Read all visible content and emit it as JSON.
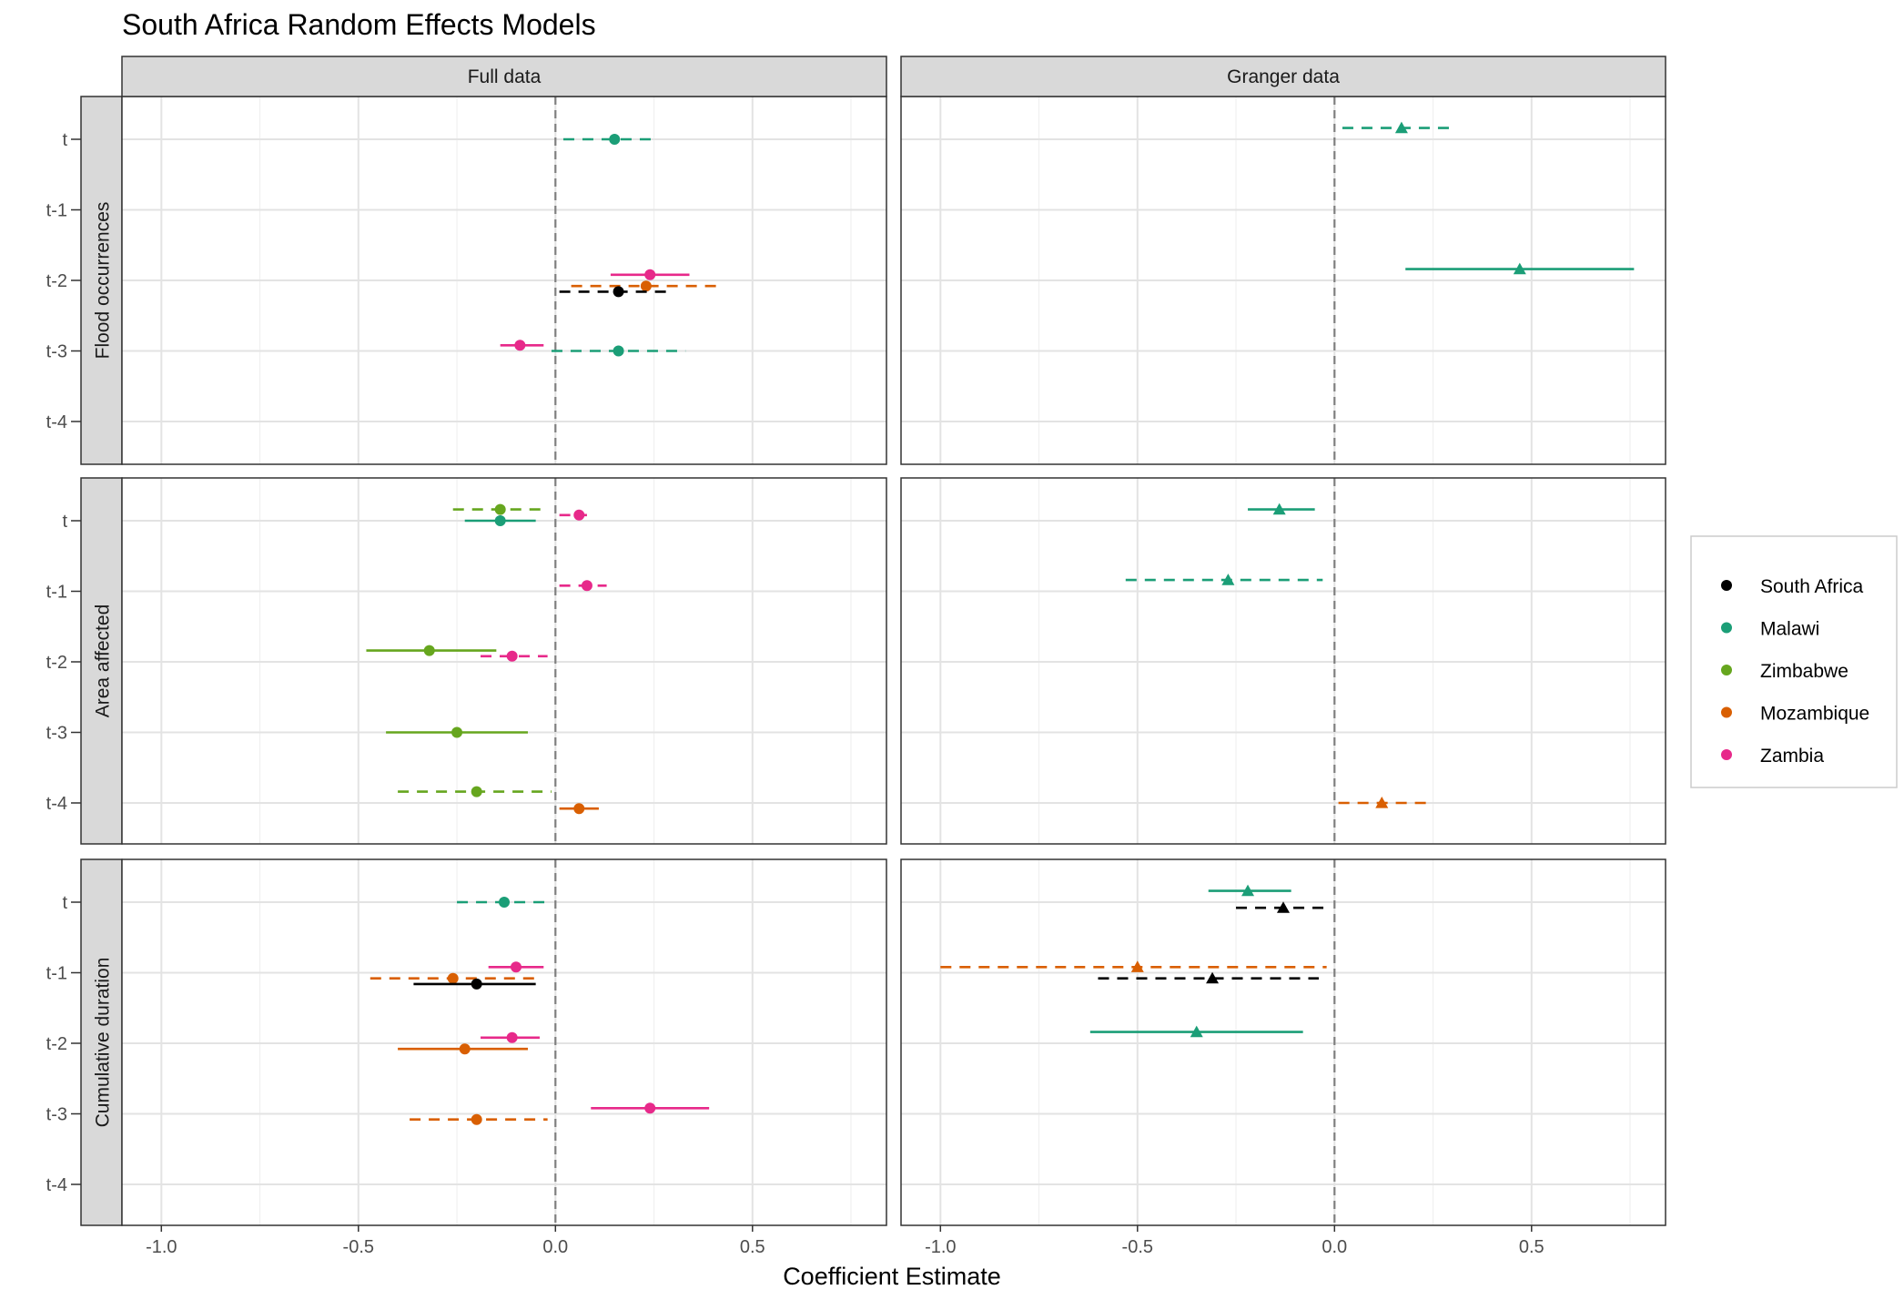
{
  "chart_data": {
    "type": "scatter",
    "subtype": "coefficient-plot",
    "title": "South Africa Random Effects Models",
    "xlabel": "Coefficient Estimate",
    "ylabel": "",
    "xlim": [
      -1.1,
      0.84
    ],
    "x_ticks": [
      -1.0,
      -0.5,
      0.0,
      0.5
    ],
    "x_tick_labels": [
      "-1.0",
      "-0.5",
      "0.0",
      "0.5"
    ],
    "y_categories": [
      "t",
      "t-1",
      "t-2",
      "t-3",
      "t-4"
    ],
    "reference_line_x": 0,
    "grid": true,
    "column_facets": [
      "Full data",
      "Granger data"
    ],
    "row_facets": [
      "Flood occurrences",
      "Area affected",
      "Cumulative duration"
    ],
    "legend": {
      "position": "right",
      "entries": [
        {
          "name": "South Africa",
          "color": "#000000"
        },
        {
          "name": "Malawi",
          "color": "#1b9e77"
        },
        {
          "name": "Zimbabwe",
          "color": "#66a61e"
        },
        {
          "name": "Mozambique",
          "color": "#d95f02"
        },
        {
          "name": "Zambia",
          "color": "#e7298a"
        }
      ]
    },
    "points": [
      {
        "col": "Full data",
        "row": "Flood occurrences",
        "lag": "t",
        "series": "Malawi",
        "x": 0.15,
        "lo": 0.02,
        "hi": 0.26,
        "offset": 0,
        "linestyle": "dashed",
        "marker": "circle"
      },
      {
        "col": "Full data",
        "row": "Flood occurrences",
        "lag": "t-2",
        "series": "Zambia",
        "x": 0.24,
        "lo": 0.14,
        "hi": 0.34,
        "offset": -0.08,
        "linestyle": "solid",
        "marker": "circle"
      },
      {
        "col": "Full data",
        "row": "Flood occurrences",
        "lag": "t-2",
        "series": "Mozambique",
        "x": 0.23,
        "lo": 0.04,
        "hi": 0.41,
        "offset": 0.08,
        "linestyle": "dashed",
        "marker": "circle"
      },
      {
        "col": "Full data",
        "row": "Flood occurrences",
        "lag": "t-2",
        "series": "South Africa",
        "x": 0.16,
        "lo": 0.01,
        "hi": 0.3,
        "offset": 0.16,
        "linestyle": "dashed",
        "marker": "circle"
      },
      {
        "col": "Full data",
        "row": "Flood occurrences",
        "lag": "t-3",
        "series": "Zambia",
        "x": -0.09,
        "lo": -0.14,
        "hi": -0.03,
        "offset": -0.08,
        "linestyle": "solid",
        "marker": "circle"
      },
      {
        "col": "Full data",
        "row": "Flood occurrences",
        "lag": "t-3",
        "series": "Malawi",
        "x": 0.16,
        "lo": -0.01,
        "hi": 0.33,
        "offset": 0,
        "linestyle": "dashed",
        "marker": "circle"
      },
      {
        "col": "Full data",
        "row": "Area affected",
        "lag": "t",
        "series": "Zimbabwe",
        "x": -0.14,
        "lo": -0.26,
        "hi": -0.02,
        "offset": -0.16,
        "linestyle": "dashed",
        "marker": "circle"
      },
      {
        "col": "Full data",
        "row": "Area affected",
        "lag": "t",
        "series": "Zambia",
        "x": 0.06,
        "lo": 0.01,
        "hi": 0.08,
        "offset": -0.08,
        "linestyle": "dashed",
        "marker": "circle"
      },
      {
        "col": "Full data",
        "row": "Area affected",
        "lag": "t",
        "series": "Malawi",
        "x": -0.14,
        "lo": -0.23,
        "hi": -0.05,
        "offset": 0,
        "linestyle": "solid",
        "marker": "circle"
      },
      {
        "col": "Full data",
        "row": "Area affected",
        "lag": "t-1",
        "series": "Zambia",
        "x": 0.08,
        "lo": 0.01,
        "hi": 0.13,
        "offset": -0.08,
        "linestyle": "dashed",
        "marker": "circle"
      },
      {
        "col": "Full data",
        "row": "Area affected",
        "lag": "t-2",
        "series": "Zimbabwe",
        "x": -0.32,
        "lo": -0.48,
        "hi": -0.15,
        "offset": -0.16,
        "linestyle": "solid",
        "marker": "circle"
      },
      {
        "col": "Full data",
        "row": "Area affected",
        "lag": "t-2",
        "series": "Zambia",
        "x": -0.11,
        "lo": -0.19,
        "hi": -0.02,
        "offset": -0.08,
        "linestyle": "dashed",
        "marker": "circle"
      },
      {
        "col": "Full data",
        "row": "Area affected",
        "lag": "t-3",
        "series": "Zimbabwe",
        "x": -0.25,
        "lo": -0.43,
        "hi": -0.07,
        "offset": 0,
        "linestyle": "solid",
        "marker": "circle"
      },
      {
        "col": "Full data",
        "row": "Area affected",
        "lag": "t-4",
        "series": "Zimbabwe",
        "x": -0.2,
        "lo": -0.4,
        "hi": -0.01,
        "offset": -0.16,
        "linestyle": "dashed",
        "marker": "circle"
      },
      {
        "col": "Full data",
        "row": "Area affected",
        "lag": "t-4",
        "series": "Mozambique",
        "x": 0.06,
        "lo": 0.01,
        "hi": 0.11,
        "offset": 0.08,
        "linestyle": "solid",
        "marker": "circle"
      },
      {
        "col": "Full data",
        "row": "Cumulative duration",
        "lag": "t",
        "series": "Malawi",
        "x": -0.13,
        "lo": -0.25,
        "hi": -0.01,
        "offset": 0,
        "linestyle": "dashed",
        "marker": "circle"
      },
      {
        "col": "Full data",
        "row": "Cumulative duration",
        "lag": "t-1",
        "series": "Zambia",
        "x": -0.1,
        "lo": -0.17,
        "hi": -0.03,
        "offset": -0.08,
        "linestyle": "solid",
        "marker": "circle"
      },
      {
        "col": "Full data",
        "row": "Cumulative duration",
        "lag": "t-1",
        "series": "Mozambique",
        "x": -0.26,
        "lo": -0.47,
        "hi": -0.04,
        "offset": 0.08,
        "linestyle": "dashed",
        "marker": "circle"
      },
      {
        "col": "Full data",
        "row": "Cumulative duration",
        "lag": "t-1",
        "series": "South Africa",
        "x": -0.2,
        "lo": -0.36,
        "hi": -0.05,
        "offset": 0.16,
        "linestyle": "solid",
        "marker": "circle"
      },
      {
        "col": "Full data",
        "row": "Cumulative duration",
        "lag": "t-2",
        "series": "Zambia",
        "x": -0.11,
        "lo": -0.19,
        "hi": -0.04,
        "offset": -0.08,
        "linestyle": "solid",
        "marker": "circle"
      },
      {
        "col": "Full data",
        "row": "Cumulative duration",
        "lag": "t-2",
        "series": "Mozambique",
        "x": -0.23,
        "lo": -0.4,
        "hi": -0.07,
        "offset": 0.08,
        "linestyle": "solid",
        "marker": "circle"
      },
      {
        "col": "Full data",
        "row": "Cumulative duration",
        "lag": "t-3",
        "series": "Zambia",
        "x": 0.24,
        "lo": 0.09,
        "hi": 0.39,
        "offset": -0.08,
        "linestyle": "solid",
        "marker": "circle"
      },
      {
        "col": "Full data",
        "row": "Cumulative duration",
        "lag": "t-3",
        "series": "Mozambique",
        "x": -0.2,
        "lo": -0.37,
        "hi": -0.02,
        "offset": 0.08,
        "linestyle": "dashed",
        "marker": "circle"
      },
      {
        "col": "Granger data",
        "row": "Flood occurrences",
        "lag": "t",
        "series": "Malawi",
        "x": 0.17,
        "lo": 0.02,
        "hi": 0.31,
        "offset": -0.16,
        "linestyle": "dashed",
        "marker": "triangle"
      },
      {
        "col": "Granger data",
        "row": "Flood occurrences",
        "lag": "t-2",
        "series": "Malawi",
        "x": 0.47,
        "lo": 0.18,
        "hi": 0.76,
        "offset": -0.16,
        "linestyle": "solid",
        "marker": "triangle"
      },
      {
        "col": "Granger data",
        "row": "Area affected",
        "lag": "t",
        "series": "Malawi",
        "x": -0.14,
        "lo": -0.22,
        "hi": -0.05,
        "offset": -0.16,
        "linestyle": "solid",
        "marker": "triangle"
      },
      {
        "col": "Granger data",
        "row": "Area affected",
        "lag": "t-1",
        "series": "Malawi",
        "x": -0.27,
        "lo": -0.53,
        "hi": -0.03,
        "offset": -0.16,
        "linestyle": "dashed",
        "marker": "triangle"
      },
      {
        "col": "Granger data",
        "row": "Area affected",
        "lag": "t-4",
        "series": "Mozambique",
        "x": 0.12,
        "lo": 0.01,
        "hi": 0.24,
        "offset": 0,
        "linestyle": "dashed",
        "marker": "triangle"
      },
      {
        "col": "Granger data",
        "row": "Cumulative duration",
        "lag": "t",
        "series": "Malawi",
        "x": -0.22,
        "lo": -0.32,
        "hi": -0.11,
        "offset": -0.16,
        "linestyle": "solid",
        "marker": "triangle"
      },
      {
        "col": "Granger data",
        "row": "Cumulative duration",
        "lag": "t",
        "series": "South Africa",
        "x": -0.13,
        "lo": -0.25,
        "hi": -0.01,
        "offset": 0.08,
        "linestyle": "dashed",
        "marker": "triangle"
      },
      {
        "col": "Granger data",
        "row": "Cumulative duration",
        "lag": "t-1",
        "series": "Mozambique",
        "x": -0.5,
        "lo": -1.0,
        "hi": -0.02,
        "offset": -0.08,
        "linestyle": "dashed",
        "marker": "triangle"
      },
      {
        "col": "Granger data",
        "row": "Cumulative duration",
        "lag": "t-1",
        "series": "South Africa",
        "x": -0.31,
        "lo": -0.6,
        "hi": -0.04,
        "offset": 0.08,
        "linestyle": "dashed",
        "marker": "triangle"
      },
      {
        "col": "Granger data",
        "row": "Cumulative duration",
        "lag": "t-2",
        "series": "Malawi",
        "x": -0.35,
        "lo": -0.62,
        "hi": -0.08,
        "offset": -0.16,
        "linestyle": "solid",
        "marker": "triangle"
      }
    ]
  }
}
